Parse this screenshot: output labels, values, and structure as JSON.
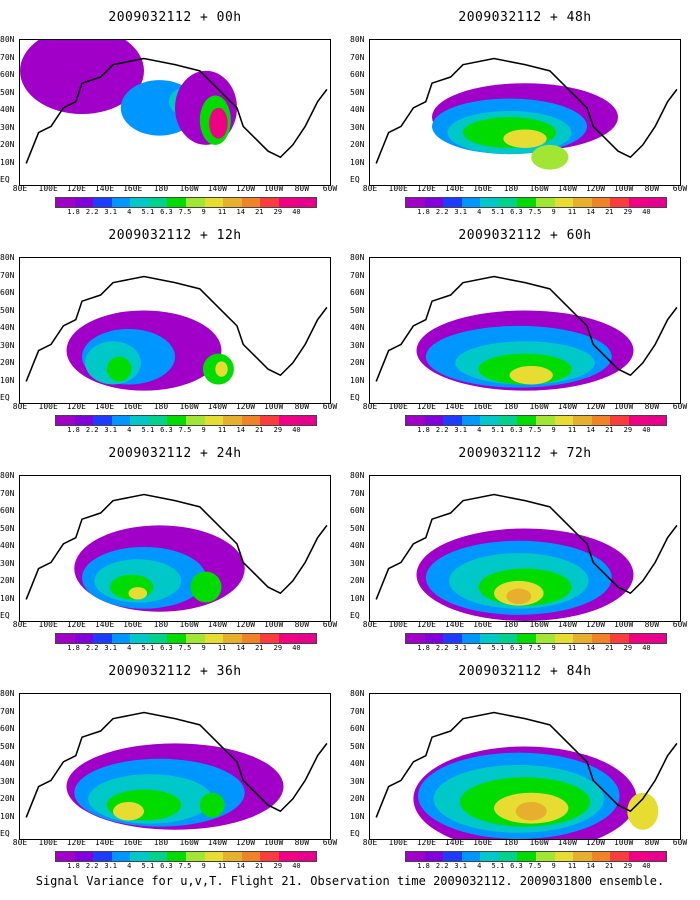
{
  "panels": [
    {
      "title": "2009032112 + 00h"
    },
    {
      "title": "2009032112 + 48h"
    },
    {
      "title": "2009032112 + 12h"
    },
    {
      "title": "2009032112 + 60h"
    },
    {
      "title": "2009032112 + 24h"
    },
    {
      "title": "2009032112 + 72h"
    },
    {
      "title": "2009032112 + 36h"
    },
    {
      "title": "2009032112 + 84h"
    }
  ],
  "lat_labels": [
    "80N",
    "70N",
    "60N",
    "50N",
    "40N",
    "30N",
    "20N",
    "10N",
    "EQ"
  ],
  "lon_labels": [
    "80E",
    "100E",
    "120E",
    "140E",
    "160E",
    "180",
    "160W",
    "140W",
    "120W",
    "100W",
    "80W",
    "60W"
  ],
  "colorbar": {
    "levels": [
      "1.8",
      "2.2",
      "3.1",
      "4",
      "5.1",
      "6.3",
      "7.5",
      "9",
      "11",
      "14",
      "21",
      "29",
      "40"
    ],
    "colors": [
      "#a000c8",
      "#8200dc",
      "#1e3cff",
      "#0096ff",
      "#00c8c8",
      "#00d28c",
      "#00dc00",
      "#a0e632",
      "#e6dc32",
      "#e6af2d",
      "#f08228",
      "#fa3c3c",
      "#f00082",
      "#e6008c"
    ]
  },
  "caption": "Signal Variance for u,v,T. Flight 21. Observation time 2009032112. 2009031800 ensemble."
}
